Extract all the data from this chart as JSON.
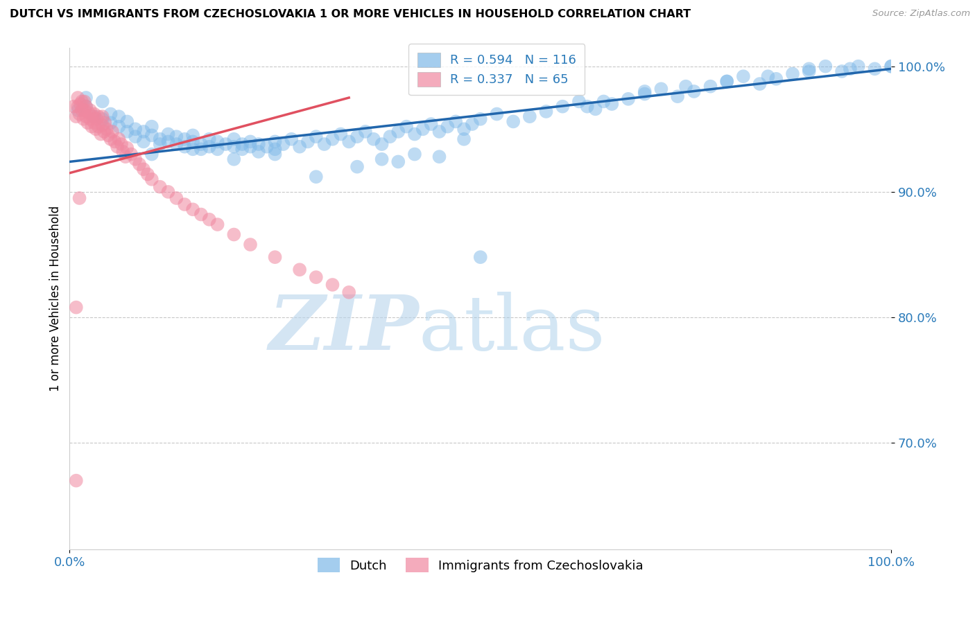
{
  "title": "DUTCH VS IMMIGRANTS FROM CZECHOSLOVAKIA 1 OR MORE VEHICLES IN HOUSEHOLD CORRELATION CHART",
  "source": "Source: ZipAtlas.com",
  "ylabel": "1 or more Vehicles in Household",
  "ylim": [
    0.615,
    1.015
  ],
  "xlim": [
    0.0,
    1.0
  ],
  "ytick_positions": [
    1.0,
    0.9,
    0.8,
    0.7
  ],
  "ytick_labels": [
    "100.0%",
    "90.0%",
    "80.0%",
    "70.0%"
  ],
  "xtick_positions": [
    0.0,
    1.0
  ],
  "xtick_labels": [
    "0.0%",
    "100.0%"
  ],
  "legend_R_blue": "0.594",
  "legend_N_blue": "116",
  "legend_R_pink": "0.337",
  "legend_N_pink": "65",
  "blue_color": "#7EB8E8",
  "pink_color": "#F088A0",
  "line_blue": "#2166AC",
  "line_pink": "#E05060",
  "blue_line_x": [
    0.0,
    1.0
  ],
  "blue_line_y": [
    0.924,
    0.998
  ],
  "pink_line_x": [
    0.0,
    0.34
  ],
  "pink_line_y": [
    0.915,
    0.975
  ],
  "blue_scatter_x": [
    0.01,
    0.02,
    0.02,
    0.03,
    0.04,
    0.04,
    0.05,
    0.05,
    0.06,
    0.06,
    0.07,
    0.07,
    0.08,
    0.08,
    0.09,
    0.09,
    0.1,
    0.1,
    0.11,
    0.11,
    0.12,
    0.12,
    0.13,
    0.13,
    0.14,
    0.14,
    0.15,
    0.15,
    0.16,
    0.16,
    0.17,
    0.17,
    0.18,
    0.18,
    0.19,
    0.2,
    0.2,
    0.21,
    0.21,
    0.22,
    0.22,
    0.23,
    0.23,
    0.24,
    0.25,
    0.25,
    0.26,
    0.27,
    0.28,
    0.29,
    0.3,
    0.31,
    0.32,
    0.33,
    0.34,
    0.35,
    0.36,
    0.37,
    0.38,
    0.39,
    0.4,
    0.41,
    0.42,
    0.43,
    0.44,
    0.45,
    0.46,
    0.47,
    0.48,
    0.49,
    0.5,
    0.52,
    0.54,
    0.56,
    0.58,
    0.6,
    0.62,
    0.64,
    0.66,
    0.68,
    0.7,
    0.72,
    0.74,
    0.76,
    0.78,
    0.8,
    0.82,
    0.84,
    0.86,
    0.88,
    0.9,
    0.92,
    0.94,
    0.96,
    0.98,
    1.0,
    0.63,
    0.65,
    0.7,
    0.75,
    0.8,
    0.85,
    0.9,
    0.95,
    1.0,
    0.5,
    0.35,
    0.4,
    0.45,
    0.3,
    0.25,
    0.2,
    0.15,
    0.1,
    0.38,
    0.42,
    0.48
  ],
  "blue_scatter_y": [
    0.965,
    0.968,
    0.975,
    0.96,
    0.958,
    0.972,
    0.955,
    0.962,
    0.952,
    0.96,
    0.948,
    0.956,
    0.95,
    0.944,
    0.948,
    0.94,
    0.945,
    0.952,
    0.942,
    0.938,
    0.94,
    0.946,
    0.938,
    0.944,
    0.942,
    0.936,
    0.94,
    0.945,
    0.938,
    0.934,
    0.936,
    0.942,
    0.934,
    0.94,
    0.938,
    0.936,
    0.942,
    0.938,
    0.934,
    0.94,
    0.936,
    0.938,
    0.932,
    0.936,
    0.94,
    0.934,
    0.938,
    0.942,
    0.936,
    0.94,
    0.944,
    0.938,
    0.942,
    0.946,
    0.94,
    0.944,
    0.948,
    0.942,
    0.938,
    0.944,
    0.948,
    0.952,
    0.946,
    0.95,
    0.954,
    0.948,
    0.952,
    0.956,
    0.95,
    0.954,
    0.958,
    0.962,
    0.956,
    0.96,
    0.964,
    0.968,
    0.972,
    0.966,
    0.97,
    0.974,
    0.978,
    0.982,
    0.976,
    0.98,
    0.984,
    0.988,
    0.992,
    0.986,
    0.99,
    0.994,
    0.998,
    1.0,
    0.996,
    1.0,
    0.998,
    1.0,
    0.968,
    0.972,
    0.98,
    0.984,
    0.988,
    0.992,
    0.996,
    0.998,
    1.0,
    0.848,
    0.92,
    0.924,
    0.928,
    0.912,
    0.93,
    0.926,
    0.934,
    0.93,
    0.926,
    0.93,
    0.942
  ],
  "pink_scatter_x": [
    0.005,
    0.008,
    0.01,
    0.01,
    0.012,
    0.013,
    0.015,
    0.015,
    0.017,
    0.018,
    0.018,
    0.02,
    0.02,
    0.022,
    0.023,
    0.025,
    0.025,
    0.027,
    0.028,
    0.03,
    0.03,
    0.032,
    0.033,
    0.035,
    0.035,
    0.038,
    0.04,
    0.04,
    0.042,
    0.043,
    0.045,
    0.047,
    0.05,
    0.052,
    0.055,
    0.058,
    0.06,
    0.063,
    0.065,
    0.068,
    0.07,
    0.075,
    0.08,
    0.085,
    0.09,
    0.095,
    0.1,
    0.11,
    0.12,
    0.13,
    0.14,
    0.15,
    0.16,
    0.17,
    0.18,
    0.2,
    0.22,
    0.25,
    0.28,
    0.3,
    0.32,
    0.34,
    0.008,
    0.012,
    0.008
  ],
  "pink_scatter_y": [
    0.968,
    0.96,
    0.968,
    0.975,
    0.962,
    0.97,
    0.965,
    0.972,
    0.958,
    0.965,
    0.972,
    0.96,
    0.968,
    0.955,
    0.963,
    0.958,
    0.965,
    0.952,
    0.96,
    0.955,
    0.962,
    0.95,
    0.958,
    0.952,
    0.96,
    0.946,
    0.953,
    0.96,
    0.948,
    0.955,
    0.95,
    0.945,
    0.942,
    0.948,
    0.94,
    0.936,
    0.942,
    0.938,
    0.932,
    0.928,
    0.935,
    0.93,
    0.926,
    0.922,
    0.918,
    0.914,
    0.91,
    0.904,
    0.9,
    0.895,
    0.89,
    0.886,
    0.882,
    0.878,
    0.874,
    0.866,
    0.858,
    0.848,
    0.838,
    0.832,
    0.826,
    0.82,
    0.808,
    0.895,
    0.67
  ]
}
